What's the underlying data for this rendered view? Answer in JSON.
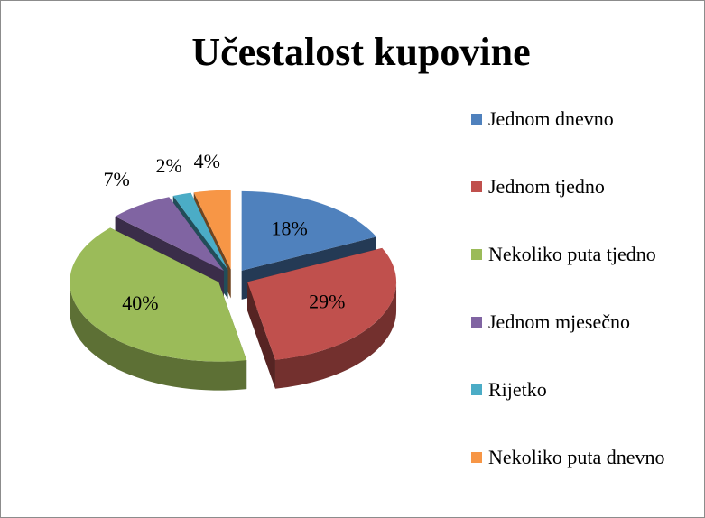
{
  "chart_data": {
    "type": "pie",
    "title": "Učestalost kupovine",
    "categories": [
      "Jednom dnevno",
      "Jednom tjedno",
      "Nekoliko puta tjedno",
      "Jednom mjesečno",
      "Rijetko",
      "Nekoliko puta dnevno"
    ],
    "values": [
      18,
      29,
      40,
      7,
      2,
      4
    ],
    "value_labels": [
      "18%",
      "29%",
      "40%",
      "7%",
      "2%",
      "4%"
    ],
    "colors": [
      "#4f81bd",
      "#c0504d",
      "#9bbb59",
      "#8064a2",
      "#4bacc6",
      "#f79646"
    ],
    "legend": "right"
  }
}
